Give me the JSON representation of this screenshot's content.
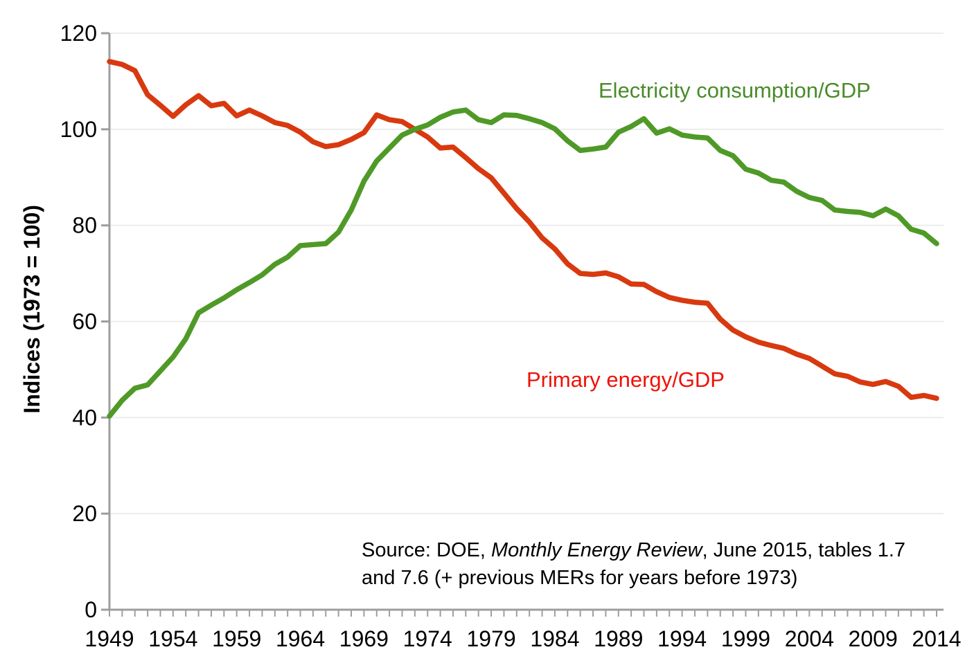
{
  "chart_data": {
    "type": "line",
    "title": "",
    "xlabel": "",
    "ylabel": "Indices (1973 = 100)",
    "x_range": [
      1949,
      2014
    ],
    "ylim": [
      0,
      120
    ],
    "y_ticks": [
      0,
      20,
      40,
      60,
      80,
      100,
      120
    ],
    "x_tick_interval_years": 1,
    "x_tick_label_years": [
      1949,
      1954,
      1959,
      1964,
      1969,
      1974,
      1979,
      1984,
      1989,
      1994,
      1999,
      2004,
      2009,
      2014
    ],
    "grid": "horizontal-light-gray",
    "legend_position": "inline-annotations",
    "series": [
      {
        "name": "Primary energy/GDP",
        "color": "#d8390f",
        "values": [
          114.1,
          113.5,
          112.2,
          107.2,
          105,
          102.7,
          105.1,
          107,
          104.9,
          105.4,
          102.8,
          104,
          102.8,
          101.4,
          100.8,
          99.4,
          97.4,
          96.4,
          96.8,
          97.9,
          99.3,
          103,
          102,
          101.6,
          100,
          98.4,
          96.1,
          96.3,
          94.1,
          91.8,
          89.9,
          86.7,
          83.5,
          80.7,
          77.4,
          75.1,
          72,
          70,
          69.8,
          70.1,
          69.3,
          67.8,
          67.7,
          66.2,
          65,
          64.4,
          64,
          63.8,
          60.5,
          58.2,
          56.8,
          55.7,
          55,
          54.4,
          53.2,
          52.3,
          50.7,
          49.1,
          48.6,
          47.4,
          46.9,
          47.5,
          46.5,
          44.2,
          44.6,
          44
        ]
      },
      {
        "name": "Electricity consumption/GDP",
        "color": "#4f9a27",
        "values": [
          40.3,
          43.6,
          46.1,
          46.8,
          49.7,
          52.6,
          56.4,
          61.8,
          63.4,
          64.9,
          66.6,
          68.1,
          69.7,
          71.9,
          73.4,
          75.8,
          76,
          76.2,
          78.6,
          83.2,
          89.2,
          93.4,
          96.1,
          98.8,
          100,
          100.9,
          102.5,
          103.6,
          104,
          102,
          101.4,
          103,
          102.9,
          102.2,
          101.4,
          100.1,
          97.6,
          95.6,
          95.9,
          96.3,
          99.4,
          100.6,
          102.2,
          99.2,
          100.1,
          98.8,
          98.4,
          98.2,
          95.6,
          94.5,
          91.7,
          90.9,
          89.4,
          89,
          87.1,
          85.8,
          85.2,
          83.2,
          82.9,
          82.7,
          82,
          83.4,
          82,
          79.2,
          78.4,
          76.2
        ]
      }
    ],
    "annotations": [
      {
        "id": "electricity",
        "text": "Electricity consumption/GDP",
        "color": "#4a8b2a"
      },
      {
        "id": "primary-energy",
        "text": "Primary energy/GDP",
        "color": "#ee1208"
      }
    ],
    "source_note": {
      "prefix": "Source: DOE, ",
      "italic": "Monthly Energy Review",
      "suffix": ", June 2015, tables 1.7",
      "line2": "and 7.6 (+ previous MERs for years before 1973)"
    }
  },
  "style_colors": {
    "axis": "#9e9e9e",
    "gridline": "#ececec",
    "tick_label": "#000000",
    "background": "#ffffff"
  }
}
